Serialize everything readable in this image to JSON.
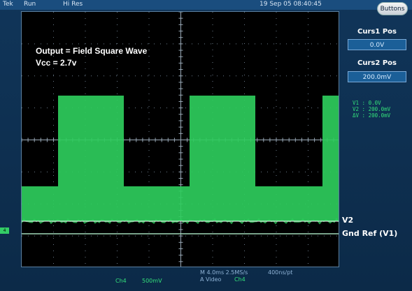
{
  "topbar": {
    "brand": "Tek",
    "mode": "Run",
    "acq": "Hi Res",
    "timestamp": "19 Sep 05 08:40:45",
    "buttons_label": "Buttons"
  },
  "annotations": {
    "line1": "Output = Field Square Wave",
    "line2": "Vcc = 2.7v"
  },
  "sidebar": {
    "curs1_label": "Curs1 Pos",
    "curs1_value": "0.0V",
    "curs2_label": "Curs2 Pos",
    "curs2_value": "200.0mV",
    "readout": {
      "v1": "V1 :   0.0V",
      "v2": "V2 :   200.0mV",
      "dv": "ΔV :   200.0mV"
    }
  },
  "right_labels": {
    "v2": "V2",
    "gnd": "Gnd Ref (V1)"
  },
  "status": {
    "channel": "Ch4",
    "volts_div": "500mV",
    "timebase": "M 4.0ms 2.5MS/s",
    "resolution": "400ns/pt",
    "trigger": "A  Video",
    "trigger_source": "Ch4"
  },
  "marker": {
    "label": "4"
  },
  "colors": {
    "trace": "#2ecc5c",
    "cursor": "#ffffff"
  }
}
